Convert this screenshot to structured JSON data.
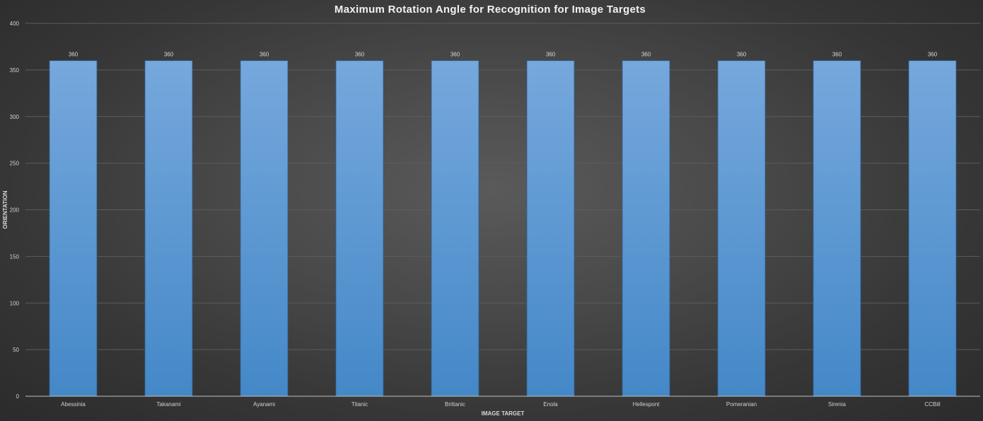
{
  "chart_data": {
    "type": "bar",
    "title": "Maximum Rotation Angle for Recognition for Image Targets",
    "xlabel": "IMAGE TARGET",
    "ylabel": "ORIENTATION",
    "categories": [
      "Abessinia",
      "Takanami",
      "Ayanami",
      "Titanic",
      "Brittanic",
      "Enola",
      "Hellespont",
      "Pomeranian",
      "Sirenia",
      "CCBill"
    ],
    "values": [
      360,
      360,
      360,
      360,
      360,
      360,
      360,
      360,
      360,
      360
    ],
    "data_labels": [
      "360",
      "360",
      "360",
      "360",
      "360",
      "360",
      "360",
      "360",
      "360",
      "360"
    ],
    "ylim": [
      0,
      400
    ],
    "yticks": [
      0,
      50,
      100,
      150,
      200,
      250,
      300,
      350,
      400
    ],
    "grid": true,
    "legend": "none",
    "colors": {
      "bar_top": "#76a8dc",
      "bar_bottom": "#4488c8",
      "bar_edge": "#2e5f8f",
      "gridline": "#5c5c5c",
      "axis_line": "#bfbfbf"
    }
  }
}
